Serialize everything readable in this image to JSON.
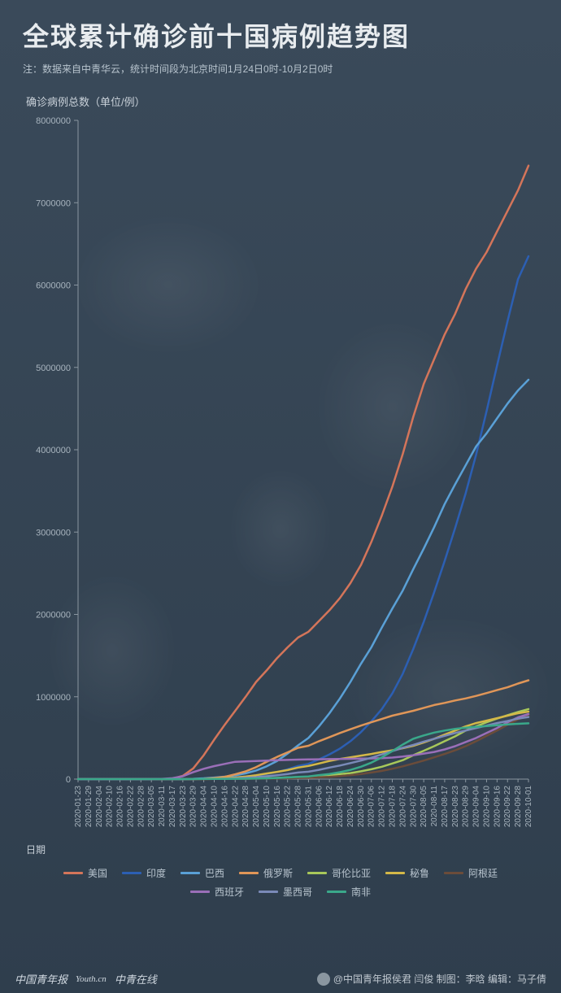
{
  "header": {
    "title": "全球累计确诊前十国病例趋势图",
    "subtitle": "注：数据来自中青华云，统计时间段为北京时间1月24日0时-10月2日0时"
  },
  "chart": {
    "type": "line",
    "ylabel": "确诊病例总数（单位/例）",
    "xlabel": "日期",
    "background_color": "transparent",
    "axis_color": "#8a96a0",
    "tick_color": "#a8b4be",
    "tick_fontsize": 11,
    "line_width": 2.5,
    "ylim": [
      0,
      8000000
    ],
    "yticks": [
      0,
      1000000,
      2000000,
      3000000,
      4000000,
      5000000,
      6000000,
      7000000,
      8000000
    ],
    "xticks": [
      "2020-01-23",
      "2020-01-29",
      "2020-02-04",
      "2020-02-10",
      "2020-02-16",
      "2020-02-22",
      "2020-02-28",
      "2020-03-05",
      "2020-03-11",
      "2020-03-17",
      "2020-03-23",
      "2020-03-29",
      "2020-04-04",
      "2020-04-10",
      "2020-04-16",
      "2020-04-22",
      "2020-04-28",
      "2020-05-04",
      "2020-05-10",
      "2020-05-16",
      "2020-05-22",
      "2020-05-28",
      "2020-05-31",
      "2020-06-06",
      "2020-06-12",
      "2020-06-18",
      "2020-06-24",
      "2020-06-30",
      "2020-07-06",
      "2020-07-12",
      "2020-07-18",
      "2020-07-24",
      "2020-07-30",
      "2020-08-05",
      "2020-08-11",
      "2020-08-17",
      "2020-08-23",
      "2020-08-29",
      "2020-09-04",
      "2020-09-10",
      "2020-09-16",
      "2020-09-22",
      "2020-09-28",
      "2020-10-01"
    ],
    "series": [
      {
        "name": "美国",
        "color": "#d4755a",
        "data": [
          0,
          0,
          0,
          0,
          0,
          0,
          0,
          100,
          1000,
          5000,
          40000,
          130000,
          290000,
          480000,
          660000,
          830000,
          1000000,
          1180000,
          1320000,
          1470000,
          1600000,
          1720000,
          1790000,
          1920000,
          2050000,
          2200000,
          2380000,
          2600000,
          2880000,
          3200000,
          3550000,
          3950000,
          4400000,
          4800000,
          5100000,
          5400000,
          5650000,
          5950000,
          6200000,
          6400000,
          6650000,
          6900000,
          7150000,
          7450000
        ]
      },
      {
        "name": "印度",
        "color": "#2c5fb3",
        "data": [
          0,
          0,
          0,
          0,
          0,
          0,
          0,
          0,
          0,
          100,
          400,
          1000,
          3000,
          7000,
          13000,
          21000,
          31000,
          43000,
          63000,
          86000,
          120000,
          160000,
          185000,
          240000,
          300000,
          370000,
          460000,
          570000,
          700000,
          850000,
          1040000,
          1280000,
          1580000,
          1910000,
          2270000,
          2650000,
          3050000,
          3470000,
          3940000,
          4470000,
          5020000,
          5560000,
          6070000,
          6350000
        ]
      },
      {
        "name": "巴西",
        "color": "#5aa0d6",
        "data": [
          0,
          0,
          0,
          0,
          0,
          0,
          0,
          0,
          0,
          200,
          1500,
          4000,
          10000,
          19000,
          30000,
          45000,
          70000,
          105000,
          155000,
          220000,
          310000,
          410000,
          500000,
          640000,
          800000,
          980000,
          1180000,
          1400000,
          1600000,
          1840000,
          2070000,
          2290000,
          2550000,
          2800000,
          3060000,
          3340000,
          3580000,
          3810000,
          4040000,
          4200000,
          4380000,
          4560000,
          4720000,
          4850000
        ]
      },
      {
        "name": "俄罗斯",
        "color": "#e09658",
        "data": [
          0,
          0,
          0,
          0,
          0,
          0,
          0,
          0,
          0,
          100,
          400,
          1500,
          4000,
          12000,
          28000,
          58000,
          94000,
          145000,
          210000,
          270000,
          325000,
          380000,
          405000,
          460000,
          510000,
          560000,
          605000,
          650000,
          690000,
          730000,
          770000,
          800000,
          830000,
          865000,
          900000,
          925000,
          955000,
          980000,
          1010000,
          1045000,
          1080000,
          1115000,
          1160000,
          1200000
        ]
      },
      {
        "name": "哥伦比亚",
        "color": "#a8c85a",
        "data": [
          0,
          0,
          0,
          0,
          0,
          0,
          0,
          0,
          0,
          50,
          200,
          700,
          1400,
          2500,
          3200,
          4300,
          5600,
          7700,
          11000,
          15000,
          21000,
          25000,
          28000,
          40000,
          47000,
          60000,
          73000,
          95000,
          120000,
          150000,
          190000,
          230000,
          290000,
          345000,
          400000,
          460000,
          520000,
          590000,
          640000,
          690000,
          735000,
          775000,
          815000,
          850000
        ]
      },
      {
        "name": "秘鲁",
        "color": "#d4b848",
        "data": [
          0,
          0,
          0,
          0,
          0,
          0,
          0,
          0,
          0,
          80,
          300,
          900,
          1700,
          5900,
          12500,
          19000,
          31000,
          47000,
          68000,
          88000,
          110000,
          140000,
          160000,
          190000,
          220000,
          245000,
          265000,
          285000,
          305000,
          330000,
          350000,
          375000,
          405000,
          445000,
          490000,
          540000,
          590000,
          640000,
          680000,
          710000,
          740000,
          770000,
          800000,
          820000
        ]
      },
      {
        "name": "阿根廷",
        "color": "#6b4c3a",
        "data": [
          0,
          0,
          0,
          0,
          0,
          0,
          0,
          0,
          0,
          60,
          200,
          750,
          1300,
          1900,
          2600,
          3200,
          4000,
          4800,
          6000,
          7800,
          10000,
          14000,
          16000,
          22000,
          28000,
          37000,
          48000,
          62000,
          80000,
          100000,
          125000,
          155000,
          190000,
          225000,
          265000,
          305000,
          350000,
          400000,
          460000,
          525000,
          590000,
          660000,
          725000,
          780000
        ]
      },
      {
        "name": "西班牙",
        "color": "#9a6fb8",
        "data": [
          0,
          0,
          0,
          0,
          0,
          0,
          0,
          20,
          1500,
          11000,
          35000,
          85000,
          125000,
          158000,
          185000,
          210000,
          215000,
          220000,
          225000,
          230000,
          233000,
          237000,
          239000,
          241000,
          243000,
          245000,
          247000,
          249000,
          251000,
          254000,
          262000,
          275000,
          290000,
          310000,
          330000,
          360000,
          400000,
          450000,
          500000,
          560000,
          620000,
          690000,
          750000,
          790000
        ]
      },
      {
        "name": "墨西哥",
        "color": "#7a8ab8",
        "data": [
          0,
          0,
          0,
          0,
          0,
          0,
          0,
          0,
          0,
          80,
          300,
          1000,
          1800,
          3400,
          6000,
          10000,
          16000,
          24000,
          35000,
          47000,
          62000,
          80000,
          90000,
          113000,
          140000,
          165000,
          195000,
          225000,
          260000,
          300000,
          340000,
          380000,
          415000,
          455000,
          490000,
          525000,
          560000,
          590000,
          620000,
          650000,
          680000,
          705000,
          735000,
          755000
        ]
      },
      {
        "name": "南非",
        "color": "#3aa88a",
        "data": [
          0,
          0,
          0,
          0,
          0,
          0,
          0,
          0,
          0,
          60,
          400,
          1200,
          1600,
          2000,
          2600,
          3600,
          4800,
          7200,
          10000,
          14000,
          20000,
          27000,
          33000,
          48000,
          62000,
          84000,
          112000,
          150000,
          200000,
          265000,
          340000,
          420000,
          490000,
          530000,
          565000,
          590000,
          610000,
          625000,
          635000,
          645000,
          655000,
          665000,
          672000,
          678000
        ]
      }
    ]
  },
  "footer": {
    "brands": [
      "中国青年报",
      "Youth.cn",
      "中青在线"
    ],
    "credit": "@中国青年报侯君 闫俊 制图：李晗 编辑：马子倩"
  }
}
